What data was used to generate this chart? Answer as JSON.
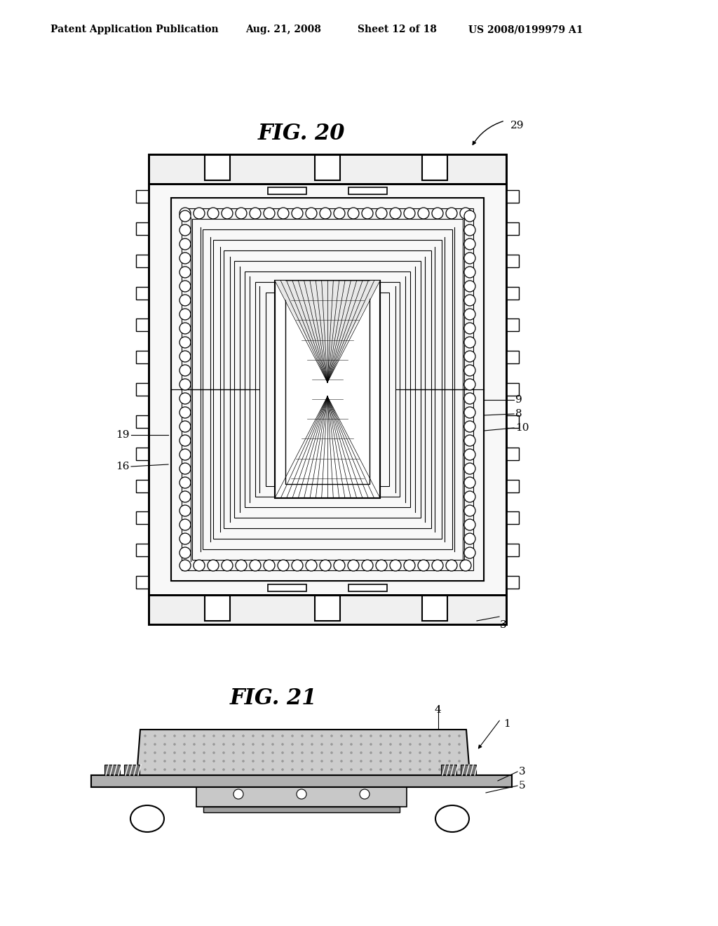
{
  "bg_color": "#ffffff",
  "line_color": "#000000",
  "header_text": "Patent Application Publication",
  "header_date": "Aug. 21, 2008",
  "header_sheet": "Sheet 12 of 18",
  "header_patent": "US 2008/0199979 A1",
  "fig20_title": "FIG. 20",
  "fig21_title": "FIG. 21",
  "fig20_ref29": "29",
  "fig20_label19": "19",
  "fig20_label16": "16",
  "fig20_label9": "9",
  "fig20_label8": "8",
  "fig20_label10": "10",
  "fig20_label3": "3",
  "fig21_label1": "1",
  "fig21_label3": "3",
  "fig21_label4": "4",
  "fig21_label5": "5",
  "gray_light": "#d8d8d8",
  "gray_mid": "#b8b8b8",
  "gray_dark": "#888888",
  "stipple_color": "#cccccc"
}
